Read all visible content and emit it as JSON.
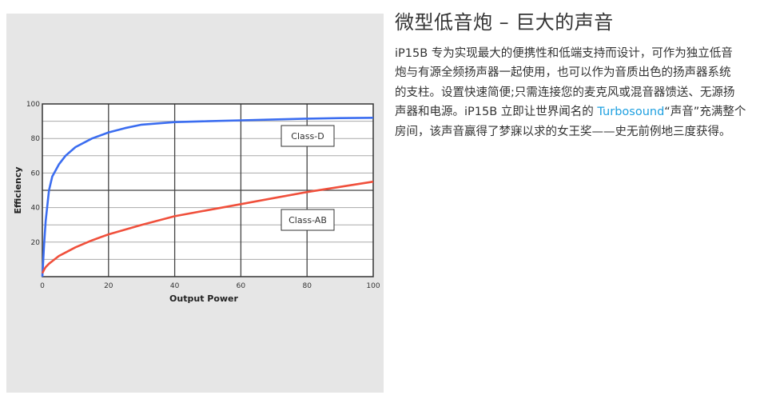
{
  "heading": "微型低音炮 – 巨大的声音",
  "paragraph": {
    "lines": [
      {
        "text": "iP15B 专为实现最大的便携性和低端支持而设计，可作为独立低音"
      },
      {
        "text": "炮与有源全频扬声器一起使用，也可以作为音质出色的扬声器系统"
      },
      {
        "text": "的支柱。设置快速简便;只需连接您的麦克风或混音器馈送、无源扬"
      },
      {
        "before": "声器和电源。iP15B 立即让世界闻名的 ",
        "link": "Turbosound",
        "after": "“声音”充满整个"
      },
      {
        "text": "房间，该声音赢得了梦寐以求的女王奖——史无前例地三度获得。"
      }
    ],
    "link_color": "#1ea0e0"
  },
  "chart_data": {
    "type": "line",
    "xlabel": "Output Power",
    "ylabel": "Efficiency",
    "xlim": [
      0,
      100
    ],
    "ylim": [
      0,
      100
    ],
    "xticks": [
      "0",
      "20",
      "40",
      "60",
      "80",
      "100"
    ],
    "yticks": [
      "20",
      "40",
      "60",
      "80",
      "100"
    ],
    "grid": true,
    "series": [
      {
        "name": "Class-D",
        "color": "#3b6df0",
        "x": [
          0,
          0.5,
          1,
          2,
          3,
          5,
          7,
          10,
          15,
          20,
          25,
          30,
          40,
          50,
          60,
          70,
          80,
          90,
          100
        ],
        "y": [
          0,
          18,
          32,
          50,
          58,
          65,
          70,
          75,
          80,
          83.5,
          86,
          88,
          89.5,
          90,
          90.5,
          91,
          91.5,
          91.8,
          92
        ]
      },
      {
        "name": "Class-AB",
        "color": "#f0503c",
        "x": [
          0,
          0.5,
          1,
          2,
          3,
          5,
          7,
          10,
          15,
          20,
          30,
          40,
          50,
          60,
          70,
          80,
          90,
          100
        ],
        "y": [
          2,
          4,
          5.5,
          7.5,
          9,
          12,
          14,
          17,
          21,
          24.5,
          30,
          35,
          38.5,
          42,
          45.5,
          49,
          52,
          55
        ]
      }
    ]
  }
}
